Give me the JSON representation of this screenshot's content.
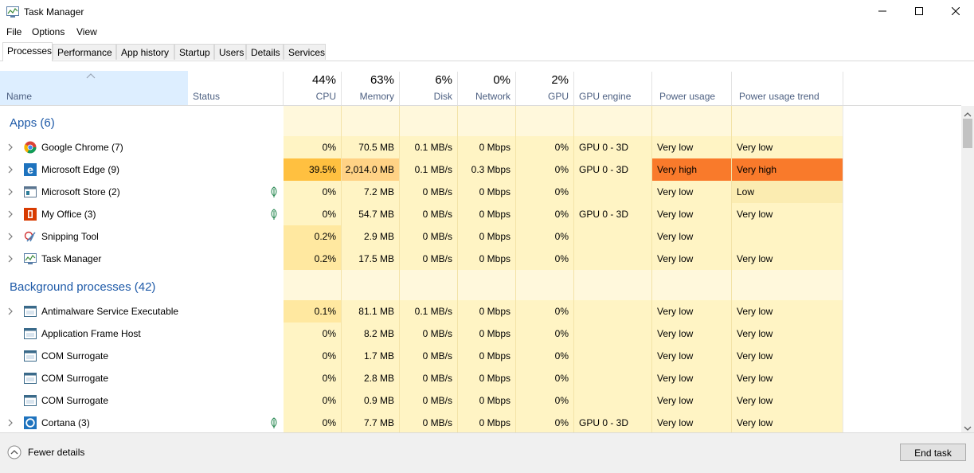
{
  "window": {
    "title": "Task Manager"
  },
  "menu": [
    "File",
    "Options",
    "View"
  ],
  "tabs": [
    "Processes",
    "Performance",
    "App history",
    "Startup",
    "Users",
    "Details",
    "Services"
  ],
  "header": {
    "name": "Name",
    "status": "Status",
    "cpu_pct": "44%",
    "cpu": "CPU",
    "memory_pct": "63%",
    "memory": "Memory",
    "disk_pct": "6%",
    "disk": "Disk",
    "network_pct": "0%",
    "network": "Network",
    "gpu_pct": "2%",
    "gpu": "GPU",
    "gpu_engine": "GPU engine",
    "power": "Power usage",
    "power_trend": "Power usage trend"
  },
  "groups": {
    "apps": "Apps (6)",
    "background": "Background processes (42)"
  },
  "rows": [
    {
      "name": "Google Chrome (7)",
      "cpu": "0%",
      "mem": "70.5 MB",
      "disk": "0.1 MB/s",
      "net": "0 Mbps",
      "gpu": "0%",
      "engine": "GPU 0 - 3D",
      "power": "Very low",
      "trend": "Very low"
    },
    {
      "name": "Microsoft Edge (9)",
      "cpu": "39.5%",
      "mem": "2,014.0 MB",
      "disk": "0.1 MB/s",
      "net": "0.3 Mbps",
      "gpu": "0%",
      "engine": "GPU 0 - 3D",
      "power": "Very high",
      "trend": "Very high"
    },
    {
      "name": "Microsoft Store (2)",
      "cpu": "0%",
      "mem": "7.2 MB",
      "disk": "0 MB/s",
      "net": "0 Mbps",
      "gpu": "0%",
      "engine": "",
      "power": "Very low",
      "trend": "Low"
    },
    {
      "name": "My Office (3)",
      "cpu": "0%",
      "mem": "54.7 MB",
      "disk": "0 MB/s",
      "net": "0 Mbps",
      "gpu": "0%",
      "engine": "GPU 0 - 3D",
      "power": "Very low",
      "trend": "Very low"
    },
    {
      "name": "Snipping Tool",
      "cpu": "0.2%",
      "mem": "2.9 MB",
      "disk": "0 MB/s",
      "net": "0 Mbps",
      "gpu": "0%",
      "engine": "",
      "power": "Very low",
      "trend": ""
    },
    {
      "name": "Task Manager",
      "cpu": "0.2%",
      "mem": "17.5 MB",
      "disk": "0 MB/s",
      "net": "0 Mbps",
      "gpu": "0%",
      "engine": "",
      "power": "Very low",
      "trend": "Very low"
    },
    {
      "name": "Antimalware Service Executable",
      "cpu": "0.1%",
      "mem": "81.1 MB",
      "disk": "0.1 MB/s",
      "net": "0 Mbps",
      "gpu": "0%",
      "engine": "",
      "power": "Very low",
      "trend": "Very low"
    },
    {
      "name": "Application Frame Host",
      "cpu": "0%",
      "mem": "8.2 MB",
      "disk": "0 MB/s",
      "net": "0 Mbps",
      "gpu": "0%",
      "engine": "",
      "power": "Very low",
      "trend": "Very low"
    },
    {
      "name": "COM Surrogate",
      "cpu": "0%",
      "mem": "1.7 MB",
      "disk": "0 MB/s",
      "net": "0 Mbps",
      "gpu": "0%",
      "engine": "",
      "power": "Very low",
      "trend": "Very low"
    },
    {
      "name": "COM Surrogate",
      "cpu": "0%",
      "mem": "2.8 MB",
      "disk": "0 MB/s",
      "net": "0 Mbps",
      "gpu": "0%",
      "engine": "",
      "power": "Very low",
      "trend": "Very low"
    },
    {
      "name": "COM Surrogate",
      "cpu": "0%",
      "mem": "0.9 MB",
      "disk": "0 MB/s",
      "net": "0 Mbps",
      "gpu": "0%",
      "engine": "",
      "power": "Very low",
      "trend": "Very low"
    },
    {
      "name": "Cortana (3)",
      "cpu": "0%",
      "mem": "7.7 MB",
      "disk": "0 MB/s",
      "net": "0 Mbps",
      "gpu": "0%",
      "engine": "GPU 0 - 3D",
      "power": "Very low",
      "trend": "Very low"
    }
  ],
  "footer": {
    "fewer_details": "Fewer details",
    "end_task": "End task"
  },
  "colors": {
    "heat_light": "#fff4c4",
    "heat_mid": "#ffe8a0",
    "heat_cpu_high": "#ffc040",
    "heat_mem_high": "#ffd285",
    "heat_power_high": "#f97a2b",
    "heat_trend_low": "#fbecb1",
    "group_header": "#1e5aa8",
    "header_label": "#4d6082"
  }
}
